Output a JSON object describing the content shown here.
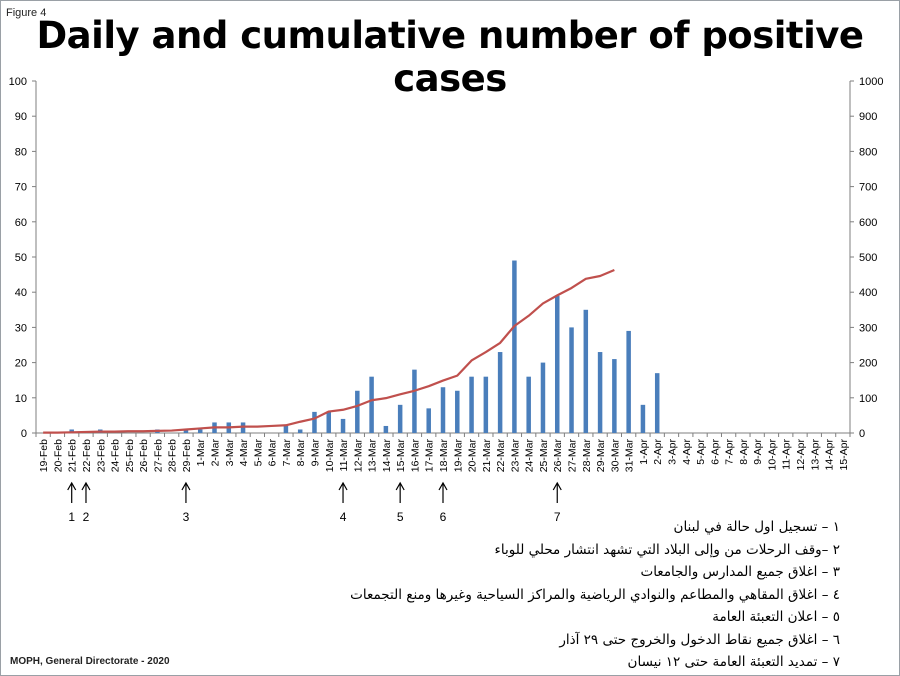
{
  "figure_label": "Figure 4",
  "footer": "MOPH, General Directorate - 2020",
  "chart_data": {
    "type": "bar",
    "title": "Daily and cumulative number of positive cases",
    "categories": [
      "19-Feb",
      "20-Feb",
      "21-Feb",
      "22-Feb",
      "23-Feb",
      "24-Feb",
      "25-Feb",
      "26-Feb",
      "27-Feb",
      "28-Feb",
      "29-Feb",
      "1-Mar",
      "2-Mar",
      "3-Mar",
      "4-Mar",
      "5-Mar",
      "6-Mar",
      "7-Mar",
      "8-Mar",
      "9-Mar",
      "10-Mar",
      "11-Mar",
      "12-Mar",
      "13-Mar",
      "14-Mar",
      "15-Mar",
      "16-Mar",
      "17-Mar",
      "18-Mar",
      "19-Mar",
      "20-Mar",
      "21-Mar",
      "22-Mar",
      "23-Mar",
      "24-Mar",
      "25-Mar",
      "26-Mar",
      "27-Mar",
      "28-Mar",
      "29-Mar",
      "30-Mar",
      "31-Mar",
      "1-Apr",
      "2-Apr",
      "3-Apr",
      "4-Apr",
      "5-Apr",
      "6-Apr",
      "7-Apr",
      "8-Apr",
      "9-Apr",
      "10-Apr",
      "11-Apr",
      "12-Apr",
      "13-Apr",
      "14-Apr",
      "15-Apr"
    ],
    "series": [
      {
        "type": "bar",
        "axis": "left",
        "color": "#4a7ebb",
        "values": [
          0,
          0,
          1,
          0,
          1,
          0,
          0,
          0,
          1,
          0,
          1,
          1,
          3,
          3,
          3,
          0,
          0,
          2,
          1,
          6,
          6,
          4,
          12,
          16,
          2,
          8,
          18,
          7,
          13,
          12,
          16,
          16,
          23,
          49,
          16,
          20,
          39,
          30,
          35,
          23,
          21,
          29,
          8,
          17,
          null,
          null,
          null,
          null,
          null,
          null,
          null,
          null,
          null,
          null,
          null,
          null,
          null
        ]
      },
      {
        "type": "line",
        "axis": "right",
        "color": "#c0504d",
        "values": [
          1,
          1,
          2,
          3,
          4,
          4,
          5,
          5,
          6,
          7,
          10,
          13,
          16,
          16,
          18,
          18,
          20,
          22,
          32,
          41,
          61,
          66,
          77,
          93,
          99,
          110,
          120,
          133,
          149,
          163,
          206,
          230,
          256,
          304,
          333,
          368,
          391,
          412,
          438,
          446,
          463,
          null,
          null,
          null,
          null,
          null,
          null,
          null,
          null,
          null,
          null,
          null,
          null,
          null,
          null,
          null,
          null
        ]
      }
    ],
    "ylim_left": [
      0,
      100
    ],
    "ylim_right": [
      0,
      1000
    ],
    "yticks_left": [
      0,
      10,
      20,
      30,
      40,
      50,
      60,
      70,
      80,
      90,
      100
    ],
    "yticks_right": [
      0,
      100,
      200,
      300,
      400,
      500,
      600,
      700,
      800,
      900,
      1000
    ],
    "grid": false,
    "annotations": [
      {
        "label": "1",
        "category": "21-Feb"
      },
      {
        "label": "2",
        "category": "22-Feb"
      },
      {
        "label": "3",
        "category": "29-Feb"
      },
      {
        "label": "4",
        "category": "11-Mar"
      },
      {
        "label": "5",
        "category": "15-Mar"
      },
      {
        "label": "6",
        "category": "18-Mar"
      },
      {
        "label": "7",
        "category": "26-Mar"
      }
    ]
  },
  "legend_items": [
    "١ – تسجيل اول حالة في لبنان",
    "٢ –وقف الرحلات من وإلى البلاد التي تشهد انتشار محلي للوباء",
    "٣ – اغلاق جميع المدارس والجامعات",
    "٤ – اغلاق المقاهي والمطاعم والنوادي الرياضية والمراكز السياحية وغيرها ومنع التجمعات",
    "٥ – اعلان التعبئة العامة",
    "٦ – اغلاق جميع نقاط الدخول والخروج حتى ٢٩ آذار",
    "٧ – تمديد التعبئة العامة حتى ١٢ نيسان"
  ]
}
